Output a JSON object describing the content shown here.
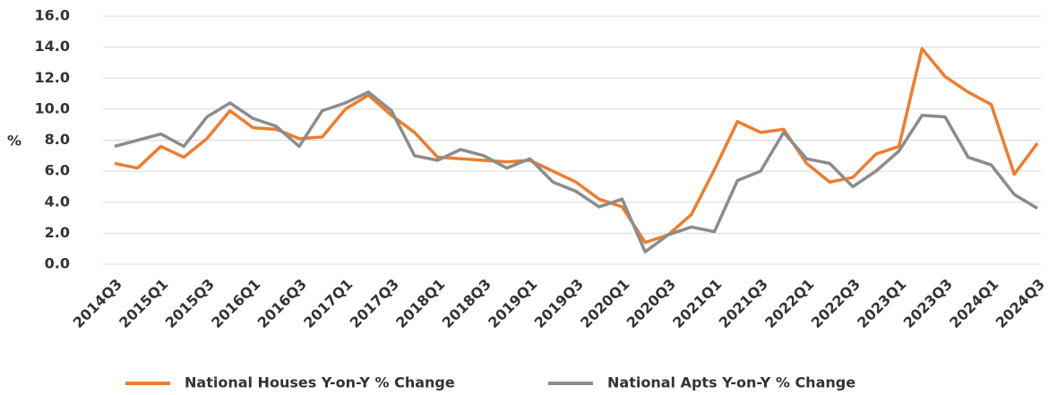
{
  "chart_data": {
    "type": "line",
    "y_label": "%",
    "categories": [
      "2014Q3",
      null,
      "2015Q1",
      null,
      "2015Q3",
      null,
      "2016Q1",
      null,
      "2016Q3",
      null,
      "2017Q1",
      null,
      "2017Q3",
      null,
      "2018Q1",
      null,
      "2018Q3",
      null,
      "2019Q1",
      null,
      "2019Q3",
      null,
      "2020Q1",
      null,
      "2020Q3",
      null,
      "2021Q1",
      null,
      "2021Q3",
      null,
      "2022Q1",
      null,
      "2022Q3",
      null,
      "2023Q1",
      null,
      "2023Q3",
      null,
      "2024Q1",
      null,
      "2024Q3"
    ],
    "series": [
      {
        "name": "National Houses Y-on-Y % Change",
        "color": "#ed7d31",
        "values": [
          6.5,
          6.2,
          7.6,
          6.9,
          8.1,
          9.9,
          8.8,
          8.7,
          8.1,
          8.2,
          10.0,
          10.9,
          9.6,
          8.5,
          6.9,
          6.8,
          6.7,
          6.6,
          6.7,
          6.0,
          5.3,
          4.2,
          3.7,
          1.4,
          1.9,
          3.2,
          6.1,
          9.2,
          8.5,
          8.7,
          6.5,
          5.3,
          5.6,
          7.1,
          7.6,
          13.9,
          12.1,
          11.1,
          10.3,
          5.8,
          7.8
        ]
      },
      {
        "name": "National Apts Y-on-Y % Change",
        "color": "#8c8c8c",
        "values": [
          7.6,
          8.0,
          8.4,
          7.6,
          9.5,
          10.4,
          9.4,
          8.9,
          7.6,
          9.9,
          10.4,
          11.1,
          9.9,
          7.0,
          6.7,
          7.4,
          7.0,
          6.2,
          6.8,
          5.3,
          4.7,
          3.7,
          4.2,
          0.8,
          1.9,
          2.4,
          2.1,
          5.4,
          6.0,
          8.5,
          6.8,
          6.5,
          5.0,
          6.0,
          7.3,
          9.6,
          9.5,
          6.9,
          6.4,
          4.5,
          3.6
        ]
      }
    ],
    "ylim": [
      0,
      16
    ],
    "yticks": [
      {
        "value": 0,
        "label": "0.0"
      },
      {
        "value": 2,
        "label": "2.0"
      },
      {
        "value": 4,
        "label": "4.0"
      },
      {
        "value": 6,
        "label": "6.0"
      },
      {
        "value": 8,
        "label": "8.0"
      },
      {
        "value": 10,
        "label": "10.0"
      },
      {
        "value": 12,
        "label": "12.0"
      },
      {
        "value": 14,
        "label": "14.0"
      },
      {
        "value": 16,
        "label": "16.0"
      }
    ],
    "grid": true,
    "legend": "bottom"
  }
}
